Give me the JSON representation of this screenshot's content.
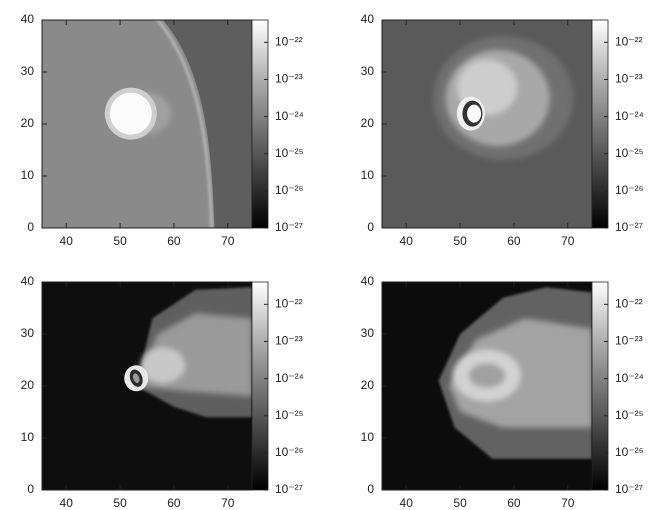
{
  "chart_data": [
    {
      "type": "heatmap",
      "xlim": [
        35.5,
        74.5
      ],
      "xticks": [
        40,
        50,
        60,
        70
      ],
      "ylim": [
        0,
        40
      ],
      "yticks": [
        0,
        10,
        20,
        30,
        40
      ],
      "colorbar": {
        "log": true,
        "lim": [
          1e-27,
          4e-22
        ],
        "ticks": [
          {
            "value": 1e-22,
            "label": "10⁻²²"
          },
          {
            "value": 1e-23,
            "label": "10⁻²³"
          },
          {
            "value": 1e-24,
            "label": "10⁻²⁴"
          },
          {
            "value": 1e-25,
            "label": "10⁻²⁵"
          },
          {
            "value": 1e-26,
            "label": "10⁻²⁶"
          },
          {
            "value": 1e-27,
            "label": "10⁻²⁷"
          }
        ]
      }
    },
    {
      "type": "heatmap",
      "xlim": [
        35.5,
        74.5
      ],
      "xticks": [
        40,
        50,
        60,
        70
      ],
      "ylim": [
        0,
        40
      ],
      "yticks": [
        0,
        10,
        20,
        30,
        40
      ],
      "colorbar": {
        "log": true,
        "lim": [
          1e-27,
          4e-22
        ],
        "ticks": [
          {
            "value": 1e-22,
            "label": "10⁻²²"
          },
          {
            "value": 1e-23,
            "label": "10⁻²³"
          },
          {
            "value": 1e-24,
            "label": "10⁻²⁴"
          },
          {
            "value": 1e-25,
            "label": "10⁻²⁵"
          },
          {
            "value": 1e-26,
            "label": "10⁻²⁶"
          },
          {
            "value": 1e-27,
            "label": "10⁻²⁷"
          }
        ]
      }
    },
    {
      "type": "heatmap",
      "xlim": [
        35.5,
        74.5
      ],
      "xticks": [
        40,
        50,
        60,
        70
      ],
      "ylim": [
        0,
        40
      ],
      "yticks": [
        0,
        10,
        20,
        30,
        40
      ],
      "colorbar": {
        "log": true,
        "lim": [
          1e-27,
          4e-22
        ],
        "ticks": [
          {
            "value": 1e-22,
            "label": "10⁻²²"
          },
          {
            "value": 1e-23,
            "label": "10⁻²³"
          },
          {
            "value": 1e-24,
            "label": "10⁻²⁴"
          },
          {
            "value": 1e-25,
            "label": "10⁻²⁵"
          },
          {
            "value": 1e-26,
            "label": "10⁻²⁶"
          },
          {
            "value": 1e-27,
            "label": "10⁻²⁷"
          }
        ]
      }
    },
    {
      "type": "heatmap",
      "xlim": [
        35.5,
        74.5
      ],
      "xticks": [
        40,
        50,
        60,
        70
      ],
      "ylim": [
        0,
        40
      ],
      "yticks": [
        0,
        10,
        20,
        30,
        40
      ],
      "colorbar": {
        "log": true,
        "lim": [
          1e-27,
          4e-22
        ],
        "ticks": [
          {
            "value": 1e-22,
            "label": "10⁻²²"
          },
          {
            "value": 1e-23,
            "label": "10⁻²³"
          },
          {
            "value": 1e-24,
            "label": "10⁻²⁴"
          },
          {
            "value": 1e-25,
            "label": "10⁻²⁵"
          },
          {
            "value": 1e-26,
            "label": "10⁻²⁶"
          },
          {
            "value": 1e-27,
            "label": "10⁻²⁷"
          }
        ]
      }
    }
  ]
}
